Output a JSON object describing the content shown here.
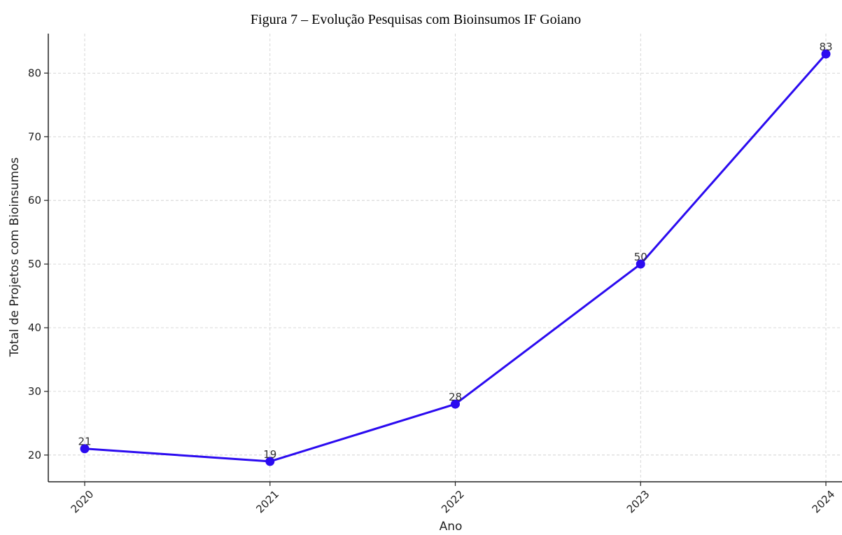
{
  "chart_data": {
    "type": "line",
    "title": "Figura 7 – Evolução Pesquisas com Bioinsumos IF Goiano",
    "xlabel": "Ano",
    "ylabel": "Total de Projetos com Bioinsumos",
    "categories": [
      "2020",
      "2021",
      "2022",
      "2023",
      "2024"
    ],
    "series": [
      {
        "values": [
          21,
          19,
          28,
          50,
          83
        ]
      }
    ],
    "data_labels": [
      "21",
      "19",
      "28",
      "50",
      "83"
    ],
    "yticks": [
      20,
      30,
      40,
      50,
      60,
      70,
      80
    ],
    "ylim": [
      15.8,
      86.2
    ],
    "xtick_rotation": "45°",
    "grid": true,
    "legend": "none",
    "line_color": "#2b0bf0",
    "marker": "circle"
  }
}
